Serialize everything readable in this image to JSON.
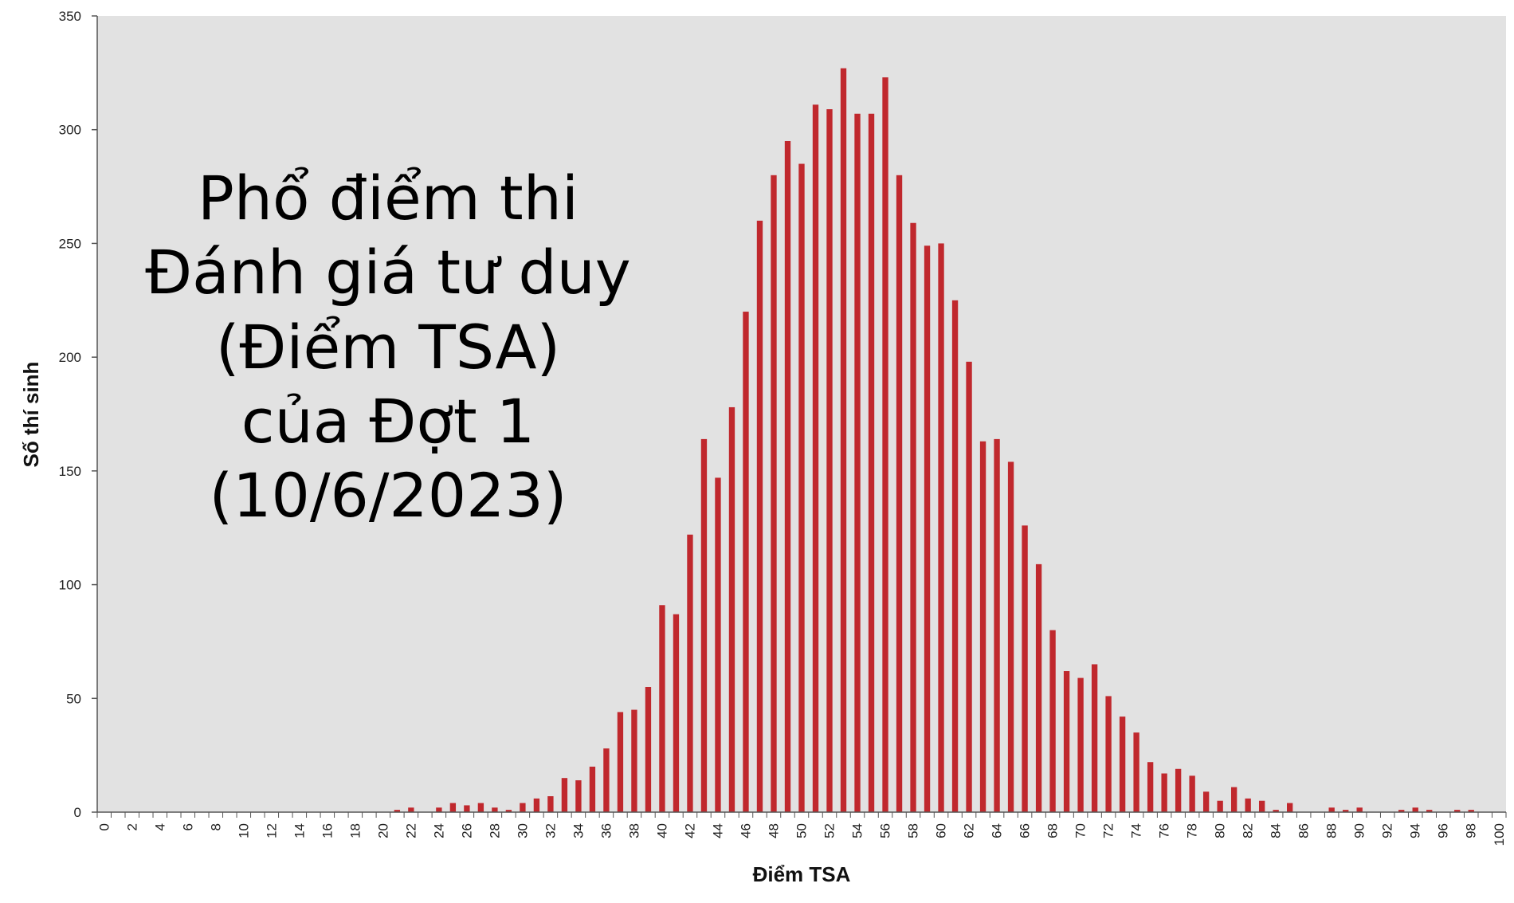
{
  "chart_data": {
    "type": "bar",
    "title_lines": [
      "Phổ điểm thi",
      "Đánh giá tư duy",
      "(Điểm TSA)",
      "của Đợt 1",
      "(10/6/2023)"
    ],
    "xlabel": "Điểm TSA",
    "ylabel": "Số thí sinh",
    "xlim": [
      0,
      100
    ],
    "ylim": [
      0,
      350
    ],
    "y_ticks": [
      0,
      50,
      100,
      150,
      200,
      250,
      300,
      350
    ],
    "x_ticks": [
      0,
      2,
      4,
      6,
      8,
      10,
      12,
      14,
      16,
      18,
      20,
      22,
      24,
      26,
      28,
      30,
      32,
      34,
      36,
      38,
      40,
      42,
      44,
      46,
      48,
      50,
      52,
      54,
      56,
      58,
      60,
      62,
      64,
      66,
      68,
      70,
      72,
      74,
      76,
      78,
      80,
      82,
      84,
      86,
      88,
      90,
      92,
      94,
      96,
      98,
      100
    ],
    "grid": false,
    "legend": "none",
    "colors": {
      "bar": "#c0282d",
      "plot_bg": "#e2e2e2"
    },
    "x": [
      0,
      1,
      2,
      3,
      4,
      5,
      6,
      7,
      8,
      9,
      10,
      11,
      12,
      13,
      14,
      15,
      16,
      17,
      18,
      19,
      20,
      21,
      22,
      23,
      24,
      25,
      26,
      27,
      28,
      29,
      30,
      31,
      32,
      33,
      34,
      35,
      36,
      37,
      38,
      39,
      40,
      41,
      42,
      43,
      44,
      45,
      46,
      47,
      48,
      49,
      50,
      51,
      52,
      53,
      54,
      55,
      56,
      57,
      58,
      59,
      60,
      61,
      62,
      63,
      64,
      65,
      66,
      67,
      68,
      69,
      70,
      71,
      72,
      73,
      74,
      75,
      76,
      77,
      78,
      79,
      80,
      81,
      82,
      83,
      84,
      85,
      86,
      87,
      88,
      89,
      90,
      91,
      92,
      93,
      94,
      95,
      96,
      97,
      98,
      99,
      100
    ],
    "values": [
      0,
      0,
      0,
      0,
      0,
      0,
      0,
      0,
      0,
      0,
      0,
      0,
      0,
      0,
      0,
      0,
      0,
      0,
      0,
      0,
      0,
      1,
      2,
      0,
      2,
      4,
      3,
      4,
      2,
      1,
      4,
      6,
      7,
      15,
      14,
      20,
      28,
      44,
      45,
      55,
      91,
      87,
      122,
      164,
      147,
      178,
      220,
      260,
      280,
      295,
      285,
      311,
      309,
      327,
      307,
      307,
      323,
      280,
      259,
      249,
      250,
      225,
      198,
      163,
      164,
      154,
      126,
      109,
      80,
      62,
      59,
      65,
      51,
      42,
      35,
      22,
      17,
      19,
      16,
      9,
      5,
      11,
      6,
      5,
      1,
      4,
      0,
      0,
      2,
      1,
      2,
      0,
      0,
      1,
      2,
      1,
      0,
      1,
      1,
      0,
      0
    ]
  }
}
